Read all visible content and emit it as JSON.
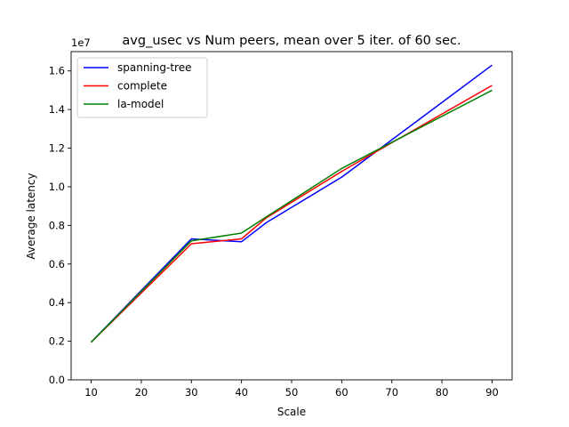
{
  "chart_data": {
    "type": "line",
    "title": "avg_usec vs Num peers, mean over 5 iter. of 60 sec.",
    "xlabel": "Scale",
    "ylabel": "Average latency",
    "y_offset_label": "1e7",
    "x": [
      10,
      30,
      40,
      45,
      60,
      90
    ],
    "xlim": [
      6,
      94
    ],
    "ylim": [
      0,
      1.7
    ],
    "xticks": [
      10,
      20,
      30,
      40,
      50,
      60,
      70,
      80,
      90
    ],
    "yticks": [
      0.0,
      0.2,
      0.4,
      0.6,
      0.8,
      1.0,
      1.2,
      1.4,
      1.6
    ],
    "ytick_labels": [
      "0.0",
      "0.2",
      "0.4",
      "0.6",
      "0.8",
      "1.0",
      "1.2",
      "1.4",
      "1.6"
    ],
    "grid": false,
    "legend_position": "top-left",
    "series": [
      {
        "name": "spanning-tree",
        "color": "#0000ff",
        "values": [
          0.195,
          0.73,
          0.715,
          0.815,
          1.05,
          1.63
        ]
      },
      {
        "name": "complete",
        "color": "#ff0000",
        "values": [
          0.195,
          0.705,
          0.73,
          0.84,
          1.08,
          1.525
        ]
      },
      {
        "name": "la-model",
        "color": "#008000",
        "values": [
          0.195,
          0.72,
          0.76,
          0.845,
          1.095,
          1.5
        ]
      }
    ]
  }
}
